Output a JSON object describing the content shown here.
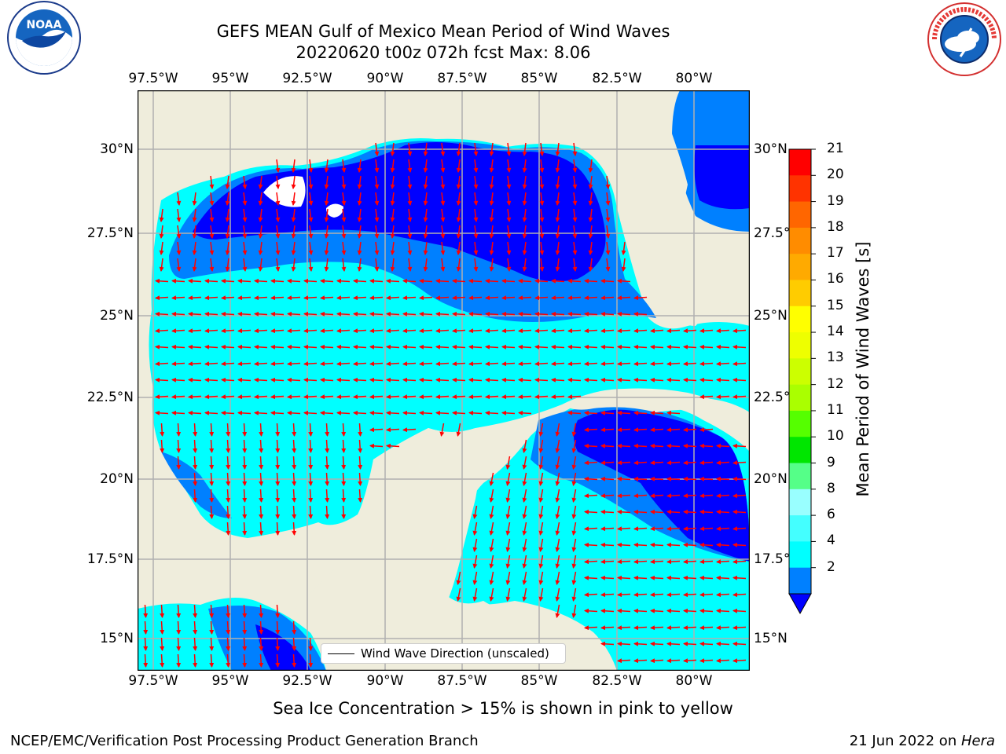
{
  "header": {
    "title_line1": "GEFS MEAN Gulf of Mexico Mean Period of Wind Waves",
    "title_line2": "20220620 t00z 072h fcst   Max: 8.06"
  },
  "logos": {
    "left": "NOAA",
    "left_ring": "NATIONAL OCEANIC AND ATMOSPHERIC ADMINISTRATION · U.S. DEPARTMENT OF COMMERCE",
    "right_ring": "NATIONAL WEATHER SERVICE"
  },
  "map": {
    "lon_labels": [
      "97.5°W",
      "95°W",
      "92.5°W",
      "90°W",
      "87.5°W",
      "85°W",
      "82.5°W",
      "80°W"
    ],
    "lat_labels": [
      "30°N",
      "27.5°N",
      "25°N",
      "22.5°N",
      "20°N",
      "17.5°N",
      "15°N"
    ],
    "colors": {
      "land": "#efeddc",
      "water_light": "#00ffff",
      "water_mid": "#0080ff",
      "water_dark": "#0000ff",
      "arrow": "#ff0000",
      "grid": "#b0b0b0"
    },
    "arrow_direction": "westward"
  },
  "legend": {
    "label": "Wind Wave Direction (unscaled)"
  },
  "colorbar": {
    "label": "Mean Period of Wind Waves [s]",
    "ticks": [
      "21",
      "20",
      "19",
      "18",
      "17",
      "16",
      "15",
      "14",
      "13",
      "12",
      "11",
      "10",
      "9",
      "8",
      "6",
      "4",
      "2"
    ],
    "colors": [
      "#ff0000",
      "#ff3300",
      "#ff6600",
      "#ff8c00",
      "#ffaa00",
      "#ffcc00",
      "#ffff00",
      "#eeff00",
      "#ccff00",
      "#aaff00",
      "#55ff00",
      "#00e600",
      "#55ff88",
      "#99ffff",
      "#44ffff",
      "#00ffff",
      "#0080ff"
    ],
    "extend_color": "#0000ff"
  },
  "subtitle": "Sea Ice Concentration > 15% is shown in pink to yellow",
  "footer": {
    "left": "NCEP/EMC/Verification Post Processing Product Generation Branch",
    "right_date": "21 Jun 2022 on ",
    "right_machine": "Hera"
  }
}
